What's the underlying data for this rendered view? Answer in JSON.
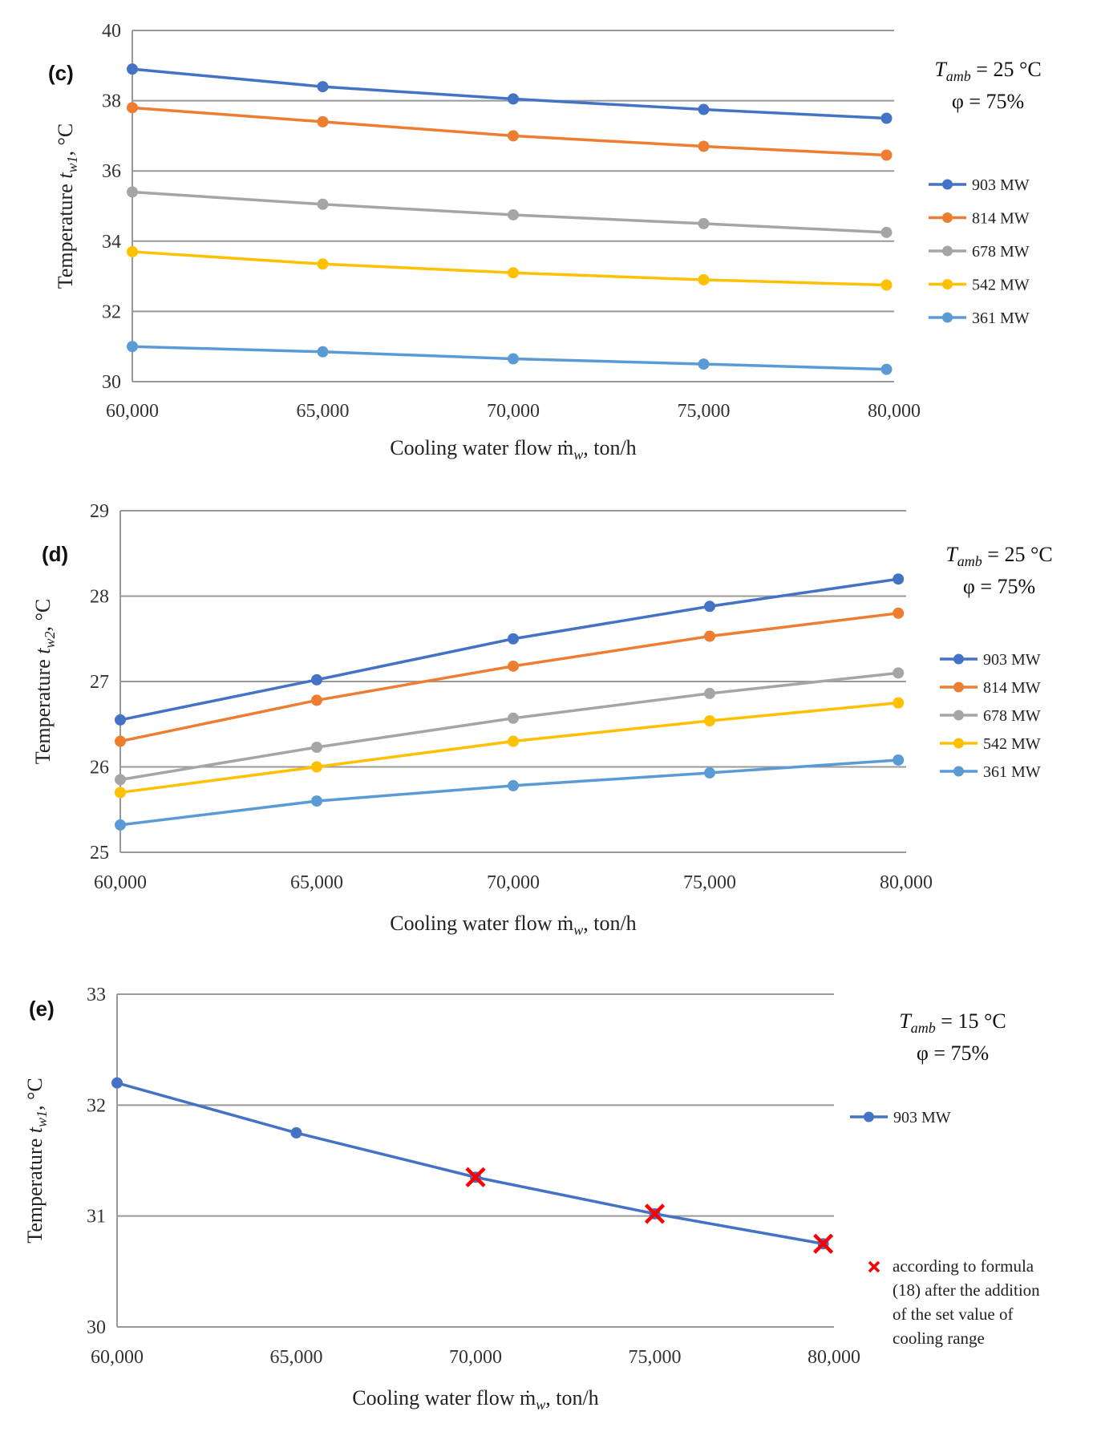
{
  "chart_data": [
    {
      "type": "line",
      "panel_label": "(c)",
      "xlabel": "Cooling water flow ṁw, ton/h",
      "ylabel": "Temperature tw1, °C",
      "xlim": [
        60000,
        80000
      ],
      "ylim": [
        30,
        40
      ],
      "x_ticks": [
        "60,000",
        "65,000",
        "70,000",
        "75,000",
        "80,000"
      ],
      "y_ticks": [
        "30",
        "32",
        "34",
        "36",
        "38",
        "40"
      ],
      "y_tick_values": [
        30,
        32,
        34,
        36,
        38,
        40
      ],
      "x": [
        60000,
        65000,
        70000,
        75000,
        79800
      ],
      "annotation": {
        "line1": "Tamb = 25 °C",
        "line2": "φ  = 75%"
      },
      "series": [
        {
          "name": "903 MW",
          "color": "#4472C4",
          "values": [
            38.9,
            38.4,
            38.05,
            37.75,
            37.5
          ]
        },
        {
          "name": "814 MW",
          "color": "#ED7D31",
          "values": [
            37.8,
            37.4,
            37.0,
            36.7,
            36.45
          ]
        },
        {
          "name": "678 MW",
          "color": "#A5A5A5",
          "values": [
            35.4,
            35.05,
            34.75,
            34.5,
            34.25
          ]
        },
        {
          "name": "542 MW",
          "color": "#FFC000",
          "values": [
            33.7,
            33.35,
            33.1,
            32.9,
            32.75
          ]
        },
        {
          "name": "361 MW",
          "color": "#5B9BD5",
          "values": [
            31.0,
            30.85,
            30.65,
            30.5,
            30.35
          ]
        }
      ]
    },
    {
      "type": "line",
      "panel_label": "(d)",
      "xlabel": "Cooling water flow ṁw, ton/h",
      "ylabel": "Temperature tw2, °C",
      "xlim": [
        60000,
        80000
      ],
      "ylim": [
        25,
        29
      ],
      "x_ticks": [
        "60,000",
        "65,000",
        "70,000",
        "75,000",
        "80,000"
      ],
      "y_ticks": [
        "25",
        "26",
        "27",
        "28",
        "29"
      ],
      "y_tick_values": [
        25,
        26,
        27,
        28,
        29
      ],
      "x": [
        60000,
        65000,
        70000,
        75000,
        79800
      ],
      "annotation": {
        "line1": "Tamb = 25 °C",
        "line2": "φ  = 75%"
      },
      "series": [
        {
          "name": "903 MW",
          "color": "#4472C4",
          "values": [
            26.55,
            27.02,
            27.5,
            27.88,
            28.2
          ]
        },
        {
          "name": "814 MW",
          "color": "#ED7D31",
          "values": [
            26.3,
            26.78,
            27.18,
            27.53,
            27.8
          ]
        },
        {
          "name": "678 MW",
          "color": "#A5A5A5",
          "values": [
            25.85,
            26.23,
            26.57,
            26.86,
            27.1
          ]
        },
        {
          "name": "542 MW",
          "color": "#FFC000",
          "values": [
            25.7,
            26.0,
            26.3,
            26.54,
            26.75
          ]
        },
        {
          "name": "361 MW",
          "color": "#5B9BD5",
          "values": [
            25.32,
            25.6,
            25.78,
            25.93,
            26.08
          ]
        }
      ]
    },
    {
      "type": "line",
      "panel_label": "(e)",
      "xlabel": "Cooling water flow ṁw, ton/h",
      "ylabel": "Temperature tw1, °C",
      "xlim": [
        60000,
        80000
      ],
      "ylim": [
        30,
        33
      ],
      "x_ticks": [
        "60,000",
        "65,000",
        "70,000",
        "75,000",
        "80,000"
      ],
      "y_ticks": [
        "30",
        "31",
        "32",
        "33"
      ],
      "y_tick_values": [
        30,
        31,
        32,
        33
      ],
      "x": [
        60000,
        65000
      ],
      "annotation": {
        "line1": "Tamb = 15 °C",
        "line2": "φ  = 75%"
      },
      "series": [
        {
          "name": "903 MW",
          "color": "#4472C4",
          "x": [
            60000,
            65000,
            70000,
            75000,
            79700
          ],
          "values": [
            32.2,
            31.75,
            31.35,
            31.02,
            30.75
          ]
        }
      ],
      "formula_points": {
        "name": "according to formula (18) after the addition of the set value of cooling range",
        "name_lines": [
          "according to formula",
          "(18) after the addition",
          "of the set value of",
          "cooling range"
        ],
        "color": "#FF0000",
        "x": [
          70000,
          75000,
          79700
        ],
        "values": [
          31.35,
          31.02,
          30.75
        ]
      }
    }
  ]
}
